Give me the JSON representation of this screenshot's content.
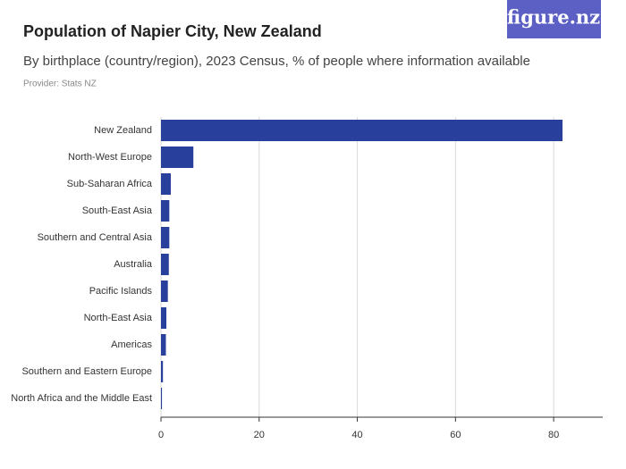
{
  "logo": "figure.nz",
  "chart_data": {
    "type": "bar",
    "orientation": "horizontal",
    "title": "Population of Napier City, New Zealand",
    "subtitle": "By birthplace (country/region), 2023 Census, % of people where information available",
    "source": "Provider: Stats NZ",
    "categories": [
      "New Zealand",
      "North-West Europe",
      "Sub-Saharan Africa",
      "South-East Asia",
      "Southern and Central Asia",
      "Australia",
      "Pacific Islands",
      "North-East Asia",
      "Americas",
      "Southern and Eastern Europe",
      "North Africa and the Middle East"
    ],
    "values": [
      81.8,
      6.6,
      2.0,
      1.7,
      1.7,
      1.6,
      1.4,
      1.1,
      1.0,
      0.4,
      0.2
    ],
    "color": "#283f9b",
    "xlim": [
      0,
      90
    ],
    "xticks": [
      0,
      20,
      40,
      60,
      80
    ],
    "grid": true
  }
}
